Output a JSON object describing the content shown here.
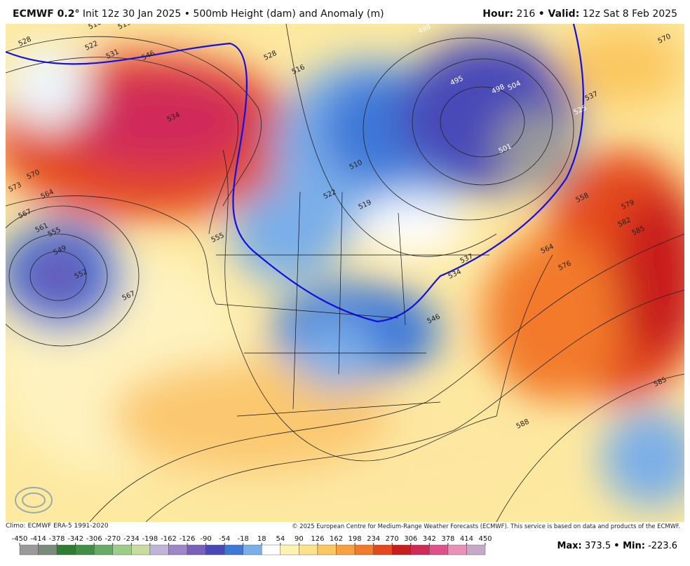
{
  "header": {
    "model": "ECMWF 0.2°",
    "init": "Init 12z 30 Jan 2025 • 500mb Height (dam) and Anomaly (m)",
    "hour_label": "Hour:",
    "hour": "216",
    "valid_label": "• Valid:",
    "valid": "12z Sat 8 Feb 2025"
  },
  "map": {
    "contour_labels": [
      "516",
      "519",
      "528",
      "522",
      "531",
      "546",
      "534",
      "570",
      "573",
      "564",
      "567",
      "561",
      "555",
      "549",
      "552",
      "567",
      "555",
      "528",
      "516",
      "510",
      "522",
      "519",
      "495",
      "498",
      "504",
      "501",
      "525",
      "537",
      "570",
      "558",
      "579",
      "582",
      "585",
      "576",
      "564",
      "537",
      "534",
      "546",
      "588",
      "585",
      "498"
    ]
  },
  "footer": {
    "climo": "Climo: ECMWF ERA-5 1991-2020",
    "copyright": "© 2025 European Centre for Medium-Range Weather Forecasts (ECMWF). This service is based on data and products of the ECMWF.",
    "max_label": "Max:",
    "max": "373.5",
    "min_label": "• Min:",
    "min": "-223.6"
  },
  "colorbar": {
    "ticks": [
      -450,
      -414,
      -378,
      -342,
      -306,
      -270,
      -234,
      -198,
      -162,
      -126,
      -90,
      -54,
      -18,
      18,
      54,
      90,
      126,
      162,
      198,
      234,
      270,
      306,
      342,
      378,
      414,
      450
    ],
    "colors": [
      "#9a9a9a",
      "#7a8a7a",
      "#2e7d32",
      "#3f8f45",
      "#66aa66",
      "#9ccc8a",
      "#c8dca0",
      "#c0b4d8",
      "#9f86c8",
      "#7a5fb8",
      "#4848b8",
      "#3c78d8",
      "#7aaee8",
      "#ffffff",
      "#fff3b0",
      "#fde28a",
      "#fbc860",
      "#f8a040",
      "#f27a2a",
      "#e4481c",
      "#c81e1e",
      "#d02a5a",
      "#e0508a",
      "#e890b8",
      "#c8a8c8"
    ]
  }
}
